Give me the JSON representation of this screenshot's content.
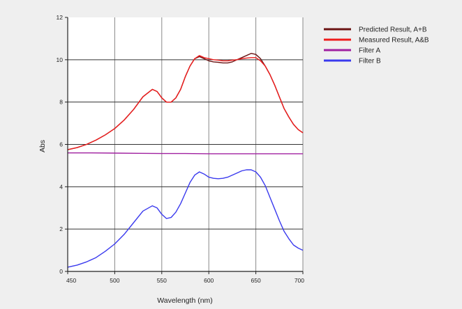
{
  "chart_data": {
    "type": "line",
    "xlabel": "Wavelength (nm)",
    "ylabel": "Abs",
    "xlim": [
      450,
      700
    ],
    "ylim": [
      0,
      12
    ],
    "xticks": [
      450,
      500,
      550,
      600,
      650,
      700
    ],
    "yticks": [
      0,
      2,
      4,
      6,
      8,
      10,
      12
    ],
    "xtick_labels": [
      "450",
      "500",
      "550",
      "600",
      "650",
      "700"
    ],
    "ytick_labels": [
      "0",
      "2",
      "4",
      "6",
      "8",
      "10",
      "12"
    ],
    "grid": true,
    "legend_position": "top-right, outside plot area",
    "series": [
      {
        "name": "Predicted Result, A+B",
        "color": "#6b1414",
        "x": [
          450,
          460,
          470,
          480,
          490,
          500,
          510,
          520,
          530,
          540,
          545,
          550,
          555,
          560,
          565,
          570,
          575,
          580,
          585,
          590,
          595,
          600,
          605,
          610,
          615,
          620,
          625,
          630,
          635,
          640,
          645,
          650,
          655,
          660,
          665,
          670,
          675,
          680,
          685,
          690,
          695,
          700
        ],
        "y": [
          5.75,
          5.85,
          6.0,
          6.2,
          6.45,
          6.75,
          7.15,
          7.65,
          8.25,
          8.6,
          8.5,
          8.2,
          8.0,
          8.0,
          8.2,
          8.6,
          9.2,
          9.7,
          10.05,
          10.15,
          10.05,
          9.95,
          9.9,
          9.88,
          9.85,
          9.85,
          9.9,
          10.0,
          10.1,
          10.2,
          10.3,
          10.25,
          10.05,
          9.7,
          9.3,
          8.8,
          8.25,
          7.7,
          7.3,
          6.95,
          6.7,
          6.55
        ]
      },
      {
        "name": "Measured Result, A&B",
        "color": "#ee1c1c",
        "x": [
          450,
          460,
          470,
          480,
          490,
          500,
          510,
          520,
          530,
          540,
          545,
          550,
          555,
          560,
          565,
          570,
          575,
          580,
          585,
          590,
          595,
          600,
          605,
          610,
          615,
          620,
          625,
          630,
          635,
          640,
          645,
          650,
          655,
          660,
          665,
          670,
          675,
          680,
          685,
          690,
          695,
          700
        ],
        "y": [
          5.75,
          5.85,
          6.0,
          6.2,
          6.45,
          6.75,
          7.15,
          7.65,
          8.25,
          8.6,
          8.5,
          8.2,
          8.0,
          8.0,
          8.2,
          8.6,
          9.2,
          9.7,
          10.05,
          10.2,
          10.1,
          10.05,
          10.0,
          9.98,
          9.95,
          9.95,
          9.98,
          10.0,
          10.05,
          10.08,
          10.1,
          10.1,
          9.95,
          9.7,
          9.3,
          8.8,
          8.25,
          7.7,
          7.3,
          6.95,
          6.7,
          6.55
        ]
      },
      {
        "name": "Filter A",
        "color": "#a020a0",
        "x": [
          450,
          475,
          500,
          525,
          550,
          575,
          600,
          625,
          650,
          675,
          700
        ],
        "y": [
          5.6,
          5.6,
          5.59,
          5.58,
          5.57,
          5.57,
          5.56,
          5.56,
          5.56,
          5.56,
          5.56
        ]
      },
      {
        "name": "Filter B",
        "color": "#3a3aee",
        "x": [
          450,
          460,
          470,
          480,
          490,
          500,
          510,
          520,
          530,
          540,
          545,
          550,
          555,
          560,
          565,
          570,
          575,
          580,
          585,
          590,
          595,
          600,
          605,
          610,
          615,
          620,
          625,
          630,
          635,
          640,
          645,
          650,
          655,
          660,
          665,
          670,
          675,
          680,
          685,
          690,
          695,
          700
        ],
        "y": [
          0.2,
          0.3,
          0.45,
          0.65,
          0.95,
          1.3,
          1.75,
          2.3,
          2.85,
          3.1,
          3.0,
          2.7,
          2.5,
          2.55,
          2.8,
          3.2,
          3.7,
          4.2,
          4.55,
          4.7,
          4.6,
          4.45,
          4.4,
          4.38,
          4.4,
          4.45,
          4.55,
          4.65,
          4.75,
          4.8,
          4.8,
          4.7,
          4.45,
          4.05,
          3.5,
          2.95,
          2.4,
          1.9,
          1.55,
          1.25,
          1.1,
          1.0
        ]
      }
    ]
  }
}
